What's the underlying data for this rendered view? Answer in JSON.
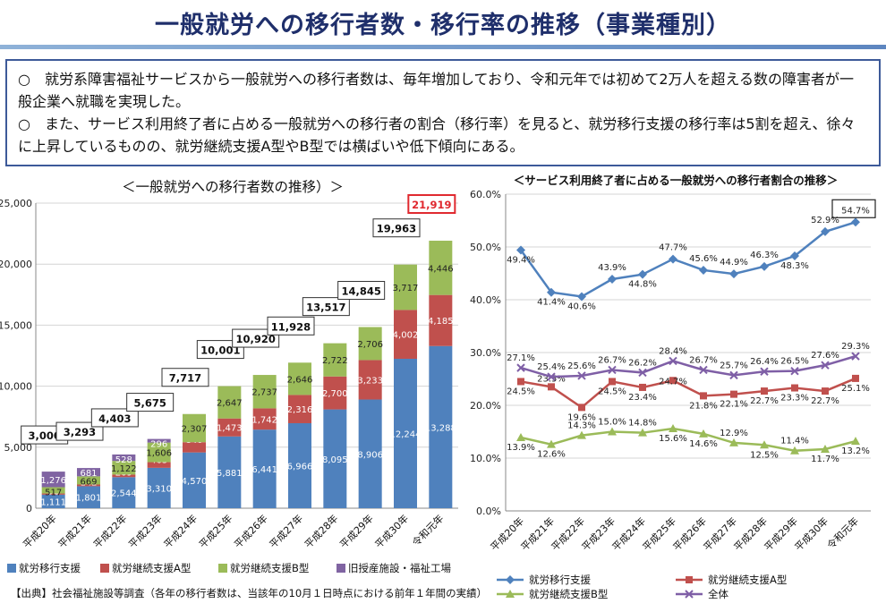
{
  "page": {
    "title": "一般就労への移行者数・移行率の推移（事業種別）",
    "bullets": [
      "○　就労系障害福祉サービスから一般就労への移行者数は、毎年増加しており、令和元年では初めて2万人を超える数の障害者が一般企業へ就職を実現した。",
      "○　また、サービス利用終了者に占める一般就労への移行者の割合（移行率）を見ると、就労移行支援の移行率は5割を超え、徐々に上昇しているものの、就労継続支援A型やB型では横ばいや低下傾向にある。"
    ],
    "source": "【出典】社会福祉施設等調査（各年の移行者数は、当該年の10月１日時点における前年１年間の実績）"
  },
  "chart_data": [
    {
      "type": "bar",
      "stacked": true,
      "title": "＜一般就労への移行者数の推移）＞",
      "categories": [
        "平成20年",
        "平成21年",
        "平成22年",
        "平成23年",
        "平成24年",
        "平成25年",
        "平成26年",
        "平成27年",
        "平成28年",
        "平成29年",
        "平成30年",
        "令和元年"
      ],
      "ylim": [
        0,
        25000
      ],
      "yticks": [
        "0",
        "5,000",
        "10,000",
        "15,000",
        "20,000",
        "25,000"
      ],
      "series": [
        {
          "name": "就労移行支援",
          "color": "#4f81bd",
          "values": [
            1111,
            1801,
            2544,
            3310,
            4570,
            5881,
            6441,
            6966,
            8095,
            8906,
            12244,
            13288
          ]
        },
        {
          "name": "就労継続支援A型",
          "color": "#c0504d",
          "values": [
            96,
            142,
            209,
            463,
            840,
            1473,
            1742,
            2316,
            2700,
            3233,
            4002,
            4185
          ]
        },
        {
          "name": "就労継続支援B型",
          "color": "#9bbb59",
          "values": [
            517,
            669,
            1122,
            1606,
            2307,
            2647,
            2737,
            2646,
            2722,
            2706,
            3717,
            4446
          ]
        },
        {
          "name": "旧授産施設・福祉工場",
          "color": "#8064a2",
          "values": [
            1276,
            681,
            528,
            296,
            0,
            0,
            0,
            0,
            0,
            0,
            0,
            0
          ]
        }
      ],
      "series_labels": [
        [
          "1,111",
          "1,801",
          "2,544",
          "3,310",
          "4,570",
          "5,881",
          "6,441",
          "6,966",
          "8,095",
          "8,906",
          "12,244",
          "13,288"
        ],
        [
          "96",
          "142",
          "209",
          "463",
          "840",
          "1,473",
          "1,742",
          "2,316",
          "2,700",
          "3,233",
          "4,002",
          "4,185"
        ],
        [
          "517",
          "669",
          "1,122",
          "1,606",
          "2,307",
          "2,647",
          "2,737",
          "2,646",
          "2,722",
          "2,706",
          "3,717",
          "4,446"
        ],
        [
          "1,276",
          "681",
          "528",
          "296",
          "",
          "",
          "",
          "",
          "",
          "",
          "",
          ""
        ]
      ],
      "totals": [
        3000,
        3293,
        4403,
        5675,
        7717,
        10001,
        10920,
        11928,
        13517,
        14845,
        19963,
        21919
      ],
      "total_labels": [
        "3,000",
        "3,293",
        "4,403",
        "5,675",
        "7,717",
        "10,001",
        "10,920",
        "11,928",
        "13,517",
        "14,845",
        "19,963",
        "21,919"
      ],
      "highlight_color": "#e0282e"
    },
    {
      "type": "line",
      "title": "＜サービス利用終了者に占める一般就労への移行者割合の推移＞",
      "categories": [
        "平成20年",
        "平成21年",
        "平成22年",
        "平成23年",
        "平成24年",
        "平成25年",
        "平成26年",
        "平成27年",
        "平成28年",
        "平成29年",
        "平成30年",
        "令和元年"
      ],
      "ylim": [
        0,
        60
      ],
      "yticks": [
        "0.0%",
        "10.0%",
        "20.0%",
        "30.0%",
        "40.0%",
        "50.0%",
        "60.0%"
      ],
      "series": [
        {
          "name": "就労移行支援",
          "color": "#4f81bd",
          "marker": "diamond",
          "values": [
            49.4,
            41.4,
            40.6,
            43.9,
            44.8,
            47.7,
            45.6,
            44.9,
            46.3,
            48.3,
            52.9,
            54.7
          ],
          "labels": [
            "49.4%",
            "41.4%",
            "40.6%",
            "43.9%",
            "44.8%",
            "47.7%",
            "45.6%",
            "44.9%",
            "46.3%",
            "48.3%",
            "52.9%",
            "54.7%"
          ]
        },
        {
          "name": "就労継続支援A型",
          "color": "#c0504d",
          "marker": "square",
          "values": [
            24.5,
            23.5,
            19.6,
            24.5,
            23.4,
            24.7,
            21.8,
            22.1,
            22.7,
            23.3,
            22.7,
            25.1
          ],
          "labels": [
            "24.5%",
            "23.5%",
            "19.6%",
            "24.5%",
            "23.4%",
            "24.7%",
            "21.8%",
            "22.1%",
            "22.7%",
            "23.3%",
            "22.7%",
            "25.1%"
          ]
        },
        {
          "name": "就労継続支援B型",
          "color": "#9bbb59",
          "marker": "triangle",
          "values": [
            13.9,
            12.6,
            14.3,
            15.0,
            14.8,
            15.6,
            14.6,
            12.9,
            12.5,
            11.4,
            11.7,
            13.2
          ],
          "labels": [
            "13.9%",
            "12.6%",
            "14.3%",
            "15.0%",
            "14.8%",
            "15.6%",
            "14.6%",
            "12.9%",
            "12.5%",
            "11.4%",
            "11.7%",
            "13.2%"
          ]
        },
        {
          "name": "全体",
          "color": "#7f5fa6",
          "marker": "x",
          "values": [
            27.1,
            25.4,
            25.6,
            26.7,
            26.2,
            28.4,
            26.7,
            25.7,
            26.4,
            26.5,
            27.6,
            29.3
          ],
          "labels": [
            "27.1%",
            "25.4%",
            "25.6%",
            "26.7%",
            "26.2%",
            "28.4%",
            "26.7%",
            "25.7%",
            "26.4%",
            "26.5%",
            "27.6%",
            "29.3%"
          ]
        }
      ]
    }
  ]
}
